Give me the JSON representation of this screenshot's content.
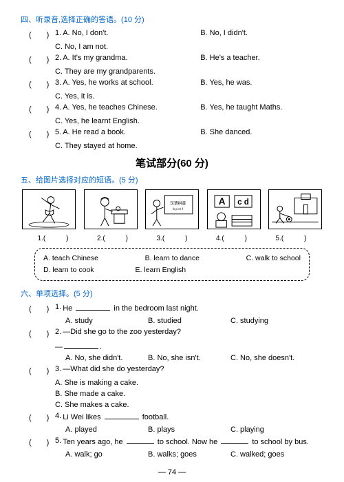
{
  "section4": {
    "title": "四、听录音,选择正确的答语。(10 分)",
    "items": [
      {
        "n": "1",
        "a": "A. No, I don't.",
        "b": "B. No, I didn't.",
        "c": "C. No, I am not."
      },
      {
        "n": "2",
        "a": "A. It's my grandma.",
        "b": "B. He's a teacher.",
        "c": "C. They are my grandparents."
      },
      {
        "n": "3",
        "a": "A. Yes, he works at school.",
        "b": "B. Yes, he was.",
        "c": "C. Yes, it is."
      },
      {
        "n": "4",
        "a": "A. Yes, he teaches Chinese.",
        "b": "B. Yes, he taught Maths.",
        "c": "C. Yes, he learnt English."
      },
      {
        "n": "5",
        "a": "A. He read a book.",
        "b": "B. She danced.",
        "c": "C. They stayed at home."
      }
    ]
  },
  "written_header": "笔试部分(60 分)",
  "section5": {
    "title": "五、给图片选择对应的短语。(5 分)",
    "labels": [
      "1.(　　　)",
      "2.(　　　)",
      "3.(　　　)",
      "4.(　　　)",
      "5.(　　　)"
    ],
    "box": {
      "row1": [
        "A. teach Chinese",
        "B. learn to dance",
        "C. walk to school"
      ],
      "row2": [
        "D. learn to cook",
        "E. learn English"
      ]
    }
  },
  "section6": {
    "title": "六、单项选择。(5 分)",
    "items": [
      {
        "n": "1",
        "stem_pre": "He ",
        "stem_post": " in the bedroom last night.",
        "opts": [
          "A. study",
          "B. studied",
          "C. studying"
        ]
      },
      {
        "n": "2",
        "stem": "—Did she go to the zoo yesterday?",
        "stem2_pre": "—",
        "stem2_post": ".",
        "opts": [
          "A. No, she didn't.",
          "B. No, she isn't.",
          "C. No, she doesn't."
        ]
      },
      {
        "n": "3",
        "stem": "—What did she do yesterday?",
        "lines": [
          "A. She is making a cake.",
          "B. She made a cake.",
          "C. She makes a cake."
        ]
      },
      {
        "n": "4",
        "stem_pre": "Li Wei likes ",
        "stem_post": " football.",
        "opts": [
          "A. played",
          "B. plays",
          "C. playing"
        ]
      },
      {
        "n": "5",
        "stem_pre": "Ten years ago, he ",
        "stem_mid": " to school. Now he ",
        "stem_post": " to school by bus.",
        "opts": [
          "A. walk; go",
          "B. walks; goes",
          "C. walked; goes"
        ]
      }
    ]
  },
  "page": "74"
}
